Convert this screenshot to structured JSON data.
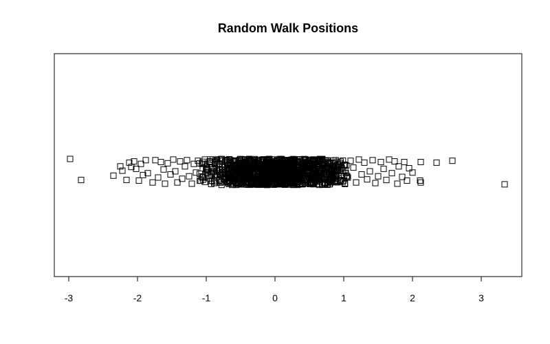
{
  "chart_data": {
    "type": "scatter",
    "title": "Random Walk Positions",
    "xlabel": "",
    "ylabel": "",
    "xlim": [
      -3.0,
      3.6
    ],
    "ylim": [
      -1.0,
      1.0
    ],
    "x_ticks": [
      "-3",
      "-2",
      "-1",
      "0",
      "1",
      "2",
      "3"
    ],
    "marker": "open-square",
    "grid": false,
    "legend": "none",
    "colors": {
      "marker": "#000000",
      "axis": "#000000",
      "background": "#ffffff"
    },
    "series": [
      {
        "points": [
          [
            -2.98,
            0.1
          ],
          [
            -2.82,
            -0.24
          ],
          [
            -2.35,
            -0.17
          ],
          [
            -2.22,
            -0.09
          ],
          [
            -2.16,
            -0.24
          ],
          [
            -2.12,
            0.04
          ],
          [
            -2.09,
            -0.03
          ],
          [
            -2.05,
            0.06
          ],
          [
            -2.02,
            -0.06
          ],
          [
            -1.98,
            -0.25
          ],
          [
            -1.88,
            0.08
          ],
          [
            -1.85,
            -0.13
          ],
          [
            -1.78,
            -0.28
          ],
          [
            -1.74,
            0.08
          ],
          [
            -1.7,
            -0.2
          ],
          [
            -1.66,
            0.05
          ],
          [
            -1.62,
            -0.07
          ],
          [
            -1.6,
            -0.3
          ],
          [
            -1.56,
            0.03
          ],
          [
            -1.52,
            -0.15
          ],
          [
            -1.48,
            0.09
          ],
          [
            -1.45,
            -0.1
          ],
          [
            -1.42,
            -0.28
          ],
          [
            -1.38,
            0.06
          ],
          [
            -1.35,
            -0.22
          ],
          [
            -1.31,
            -0.02
          ],
          [
            -1.28,
            0.08
          ],
          [
            -1.25,
            -0.18
          ],
          [
            -1.21,
            -0.3
          ],
          [
            -1.18,
            0.02
          ],
          [
            -1.15,
            -0.12
          ],
          [
            -1.12,
            0.07
          ],
          [
            -1.08,
            -0.25
          ],
          [
            -1.05,
            -0.05
          ],
          [
            -1.02,
            0.09
          ],
          [
            2.12,
            0.05
          ],
          [
            2.35,
            0.04
          ],
          [
            2.58,
            0.07
          ],
          [
            3.34,
            -0.31
          ],
          [
            2.12,
            -0.28
          ],
          [
            2.11,
            -0.25
          ],
          [
            1.92,
            -0.25
          ],
          [
            1.88,
            0.05
          ],
          [
            1.85,
            -0.19
          ],
          [
            1.8,
            -0.02
          ],
          [
            1.78,
            -0.3
          ],
          [
            1.74,
            0.06
          ],
          [
            1.7,
            -0.13
          ],
          [
            1.66,
            0.09
          ],
          [
            1.62,
            -0.24
          ],
          [
            1.58,
            -0.06
          ],
          [
            1.54,
            0.05
          ],
          [
            1.5,
            -0.18
          ],
          [
            1.46,
            -0.29
          ],
          [
            1.42,
            0.08
          ],
          [
            1.38,
            -0.1
          ],
          [
            1.34,
            -0.23
          ],
          [
            1.3,
            0.04
          ],
          [
            1.26,
            -0.15
          ],
          [
            1.22,
            0.09
          ],
          [
            1.18,
            -0.28
          ],
          [
            1.14,
            -0.04
          ],
          [
            1.1,
            0.07
          ],
          [
            1.06,
            -0.2
          ],
          [
            1.02,
            -0.08
          ],
          [
            2.0,
            -0.12
          ],
          [
            1.95,
            -0.05
          ],
          [
            -2.25,
            -0.02
          ],
          [
            -1.95,
            0.02
          ],
          [
            -1.92,
            -0.16
          ]
        ]
      }
    ]
  }
}
